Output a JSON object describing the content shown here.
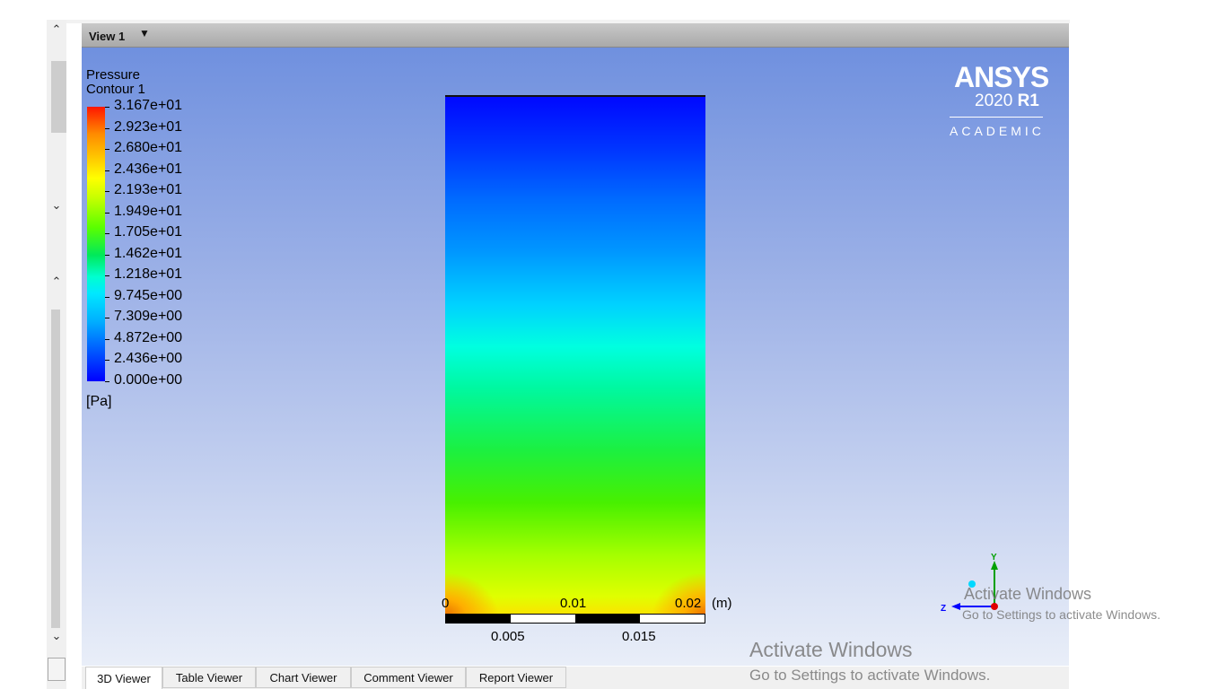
{
  "view": {
    "title": "View 1"
  },
  "legend": {
    "title_line1": "Pressure",
    "title_line2": "Contour 1",
    "labels": [
      "3.167e+01",
      "2.923e+01",
      "2.680e+01",
      "2.436e+01",
      "2.193e+01",
      "1.949e+01",
      "1.705e+01",
      "1.462e+01",
      "1.218e+01",
      "9.745e+00",
      "7.309e+00",
      "4.872e+00",
      "2.436e+00",
      "0.000e+00"
    ],
    "units": "[Pa]"
  },
  "logo": {
    "name": "ANSYS",
    "version_year": "2020",
    "version_release": "R1",
    "edition": "ACADEMIC"
  },
  "scale": {
    "top_labels": [
      "0",
      "0.01",
      "0.02"
    ],
    "units": "(m)",
    "bottom_labels": [
      "0.005",
      "0.015"
    ]
  },
  "triad": {
    "y_label": "Y",
    "z_label": "Z"
  },
  "tabs": [
    {
      "label": "3D Viewer",
      "active": true
    },
    {
      "label": "Table Viewer",
      "active": false
    },
    {
      "label": "Chart Viewer",
      "active": false
    },
    {
      "label": "Comment Viewer",
      "active": false
    },
    {
      "label": "Report Viewer",
      "active": false
    }
  ],
  "watermark": {
    "title": "Activate Windows",
    "subtitle": "Go to Settings to activate Windows."
  },
  "colors": {
    "viewer_top": "#6b8dde",
    "viewer_bottom": "#e9eef8",
    "axis_y": "#00a000",
    "axis_z": "#0000ff"
  }
}
